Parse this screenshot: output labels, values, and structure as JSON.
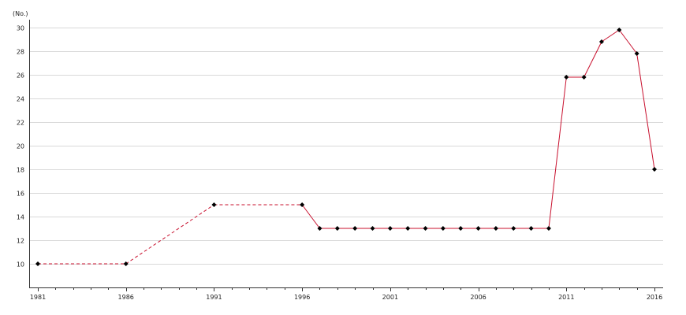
{
  "chart_data": {
    "type": "line",
    "title": "",
    "xlabel": "",
    "ylabel": "(No.)",
    "xlim": [
      1981,
      2016
    ],
    "ylim": [
      8,
      30
    ],
    "x_tick_labels": [
      "1981",
      "1986",
      "1991",
      "1996",
      "2001",
      "2006",
      "2011",
      "2016"
    ],
    "y_tick_labels": [
      "10",
      "12",
      "14",
      "16",
      "18",
      "20",
      "22",
      "24",
      "26",
      "28",
      "30"
    ],
    "grid": true,
    "line_color": "#c8102e",
    "marker_color": "#000000",
    "series": [
      {
        "x": [
          1981,
          1986,
          1991,
          1996,
          1997,
          1998,
          1999,
          2000,
          2001,
          2002,
          2003,
          2004,
          2005,
          2006,
          2007,
          2008,
          2009,
          2010,
          2011,
          2012,
          2013,
          2014,
          2015,
          2016
        ],
        "values": [
          10,
          10,
          15,
          15,
          13,
          13,
          13,
          13,
          13,
          13,
          13,
          13,
          13,
          13,
          13,
          13,
          13,
          13,
          25.8,
          25.8,
          28.8,
          29.8,
          27.8,
          18
        ],
        "dashed_segments_until_x": 1996
      }
    ]
  }
}
